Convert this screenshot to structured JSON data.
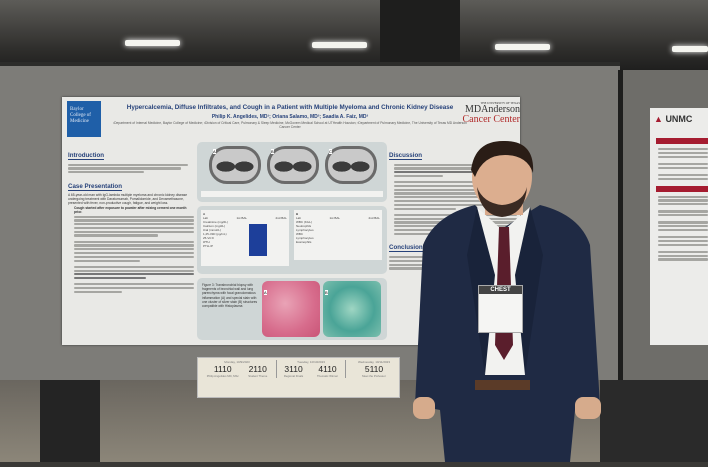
{
  "poster": {
    "title": "Hypercalcemia, Diffuse Infiltrates, and Cough in a Patient with Multiple Myeloma and Chronic Kidney Disease",
    "authors": "Philip K. Angelides, MD¹; Oriana Salamo, MD²; Saadia A. Faiz, MD³",
    "affiliations": "¹Department of Internal Medicine, Baylor College of Medicine; ²Division of Critical Care, Pulmonary & Sleep Medicine, McGovern Medical School at UTHealth Houston; ³Department of Pulmonary Medicine, The University of Texas MD Anderson Cancer Center",
    "left_logo": "Baylor College of Medicine",
    "right_logo": {
      "small": "THE UNIVERSITY OF TEXAS",
      "line1": "MDAnderson",
      "line2": "Cancer Center"
    },
    "sections": {
      "introduction": "Introduction",
      "case": "Case Presentation",
      "case_lead": "A 65-year-old man with IgG-lambda multiple myeloma and chronic kidney disease undergoing treatment with Daratumumab, Pomalidomide, and Dexamethasone, presented with fever, non-productive cough, fatigue, and weight loss.",
      "case_bullet1": "Cough started after exposure to powder after mixing cement one month prior.",
      "discussion": "Discussion",
      "conclusions": "Conclusions"
    },
    "figures": {
      "fig1_labels": [
        "A",
        "B",
        "C"
      ],
      "fig2_table_a": {
        "label": "A",
        "header": [
          "Lab",
          "1st BAL",
          "2nd BAL"
        ],
        "rows": [
          "Creatinine (mg/dL)",
          "Calcium (mg/dL)",
          "iCal (mmol/L)",
          "1,25-VitD (pg/mL)",
          "25-Vit D",
          "iPTH",
          "PTH-rP"
        ]
      },
      "fig2_table_b": {
        "label": "B",
        "header": [
          "Lab",
          "1st BAL",
          "2nd BAL"
        ],
        "rows": [
          "WBC (K/uL)",
          "Neutrophils",
          "Lymphocytes",
          "WBC",
          "Lymphocytes",
          "Eosinophils"
        ]
      },
      "fig3_caption": "Figure 3: Transbronchial biopsy with fragments of bronchial wall and lung parenchyma with focal granulomatous inflammation (A) and special stain with one cluster of silver stain (B) structures compatible with Histoplasma",
      "fig3_labels": [
        "A",
        "B"
      ]
    }
  },
  "placard": {
    "days": [
      {
        "date": "Monday, 10/9/2023",
        "codes": [
          {
            "num": "1110",
            "label": "Philip Angelides MD, MSc"
          },
          {
            "num": "2110",
            "label": "Student Theme"
          }
        ]
      },
      {
        "date": "Tuesday, 10/10/2023",
        "codes": [
          {
            "num": "3110",
            "label": "Regional Finals"
          },
          {
            "num": "4110",
            "label": "Thematic Winner"
          }
        ]
      },
      {
        "date": "Wednesday, 10/11/2023",
        "codes": [
          {
            "num": "5110",
            "label": "Meet the Professor"
          }
        ]
      }
    ]
  },
  "badge": {
    "text": "CHEST"
  },
  "neighbor_poster": {
    "logo": "UNMC"
  },
  "colors": {
    "poster_blue": "#27427a",
    "baylor_blue": "#1f5fa8",
    "mda_red": "#b02a2a",
    "suit": "#1f2a44",
    "tie": "#5a1e2c"
  }
}
